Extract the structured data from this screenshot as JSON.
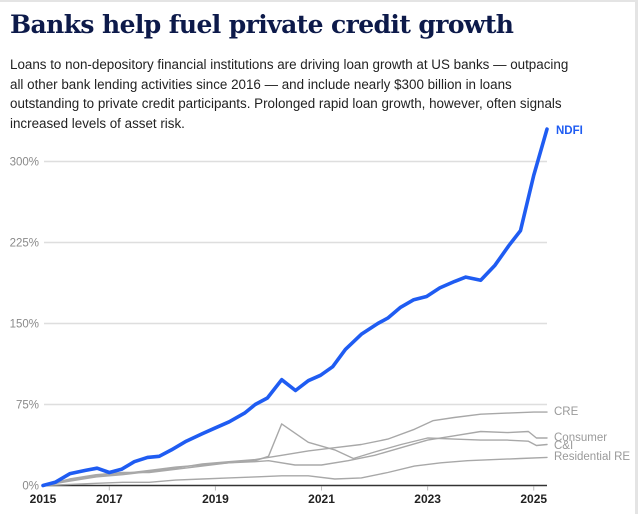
{
  "header": {
    "title": "Banks help fuel private credit growth",
    "subtitle": "Loans to non-depository financial institutions are driving loan growth at US banks — outpacing all other bank lending activities since 2016 — and include nearly $300 billion in loans outstanding to private credit participants. Prolonged rapid loan growth, however, often signals increased levels of asset risk."
  },
  "chart_data": {
    "type": "line",
    "title": "Banks help fuel private credit growth",
    "xlabel": "",
    "ylabel": "",
    "xlim": [
      2015.75,
      2025.25
    ],
    "ylim": [
      0,
      330
    ],
    "grid": true,
    "y_ticks": [
      {
        "value": 0,
        "label": "0%"
      },
      {
        "value": 75,
        "label": "75%"
      },
      {
        "value": 150,
        "label": "150%"
      },
      {
        "value": 225,
        "label": "225%"
      },
      {
        "value": 300,
        "label": "300%"
      }
    ],
    "x_ticks": [
      {
        "value": 2015,
        "label": "2015"
      },
      {
        "value": 2017,
        "label": "2017"
      },
      {
        "value": 2019,
        "label": "2019"
      },
      {
        "value": 2021,
        "label": "2021"
      },
      {
        "value": 2023,
        "label": "2023"
      },
      {
        "value": 2025,
        "label": "2025"
      }
    ],
    "legend": "direct labels at line ends (right)",
    "series": [
      {
        "name": "NDFI",
        "color": "#1f5cf2",
        "primary": true,
        "x": [
          2015.75,
          2015.98,
          2016.26,
          2016.55,
          2016.77,
          2017.0,
          2017.23,
          2017.47,
          2017.72,
          2017.94,
          2018.17,
          2018.45,
          2018.75,
          2018.98,
          2019.26,
          2019.55,
          2019.75,
          2019.98,
          2020.25,
          2020.51,
          2020.75,
          2020.98,
          2021.21,
          2021.45,
          2021.75,
          2022.06,
          2022.25,
          2022.49,
          2022.74,
          2022.98,
          2023.23,
          2023.51,
          2023.72,
          2024.0,
          2024.27,
          2024.53,
          2024.75,
          2025.0,
          2025.25
        ],
        "values": [
          0,
          3,
          11,
          14,
          16,
          12,
          15,
          22,
          26,
          27,
          33,
          41,
          48,
          53,
          59,
          67,
          75,
          81,
          98,
          88,
          97,
          102,
          110,
          126,
          140,
          150,
          155,
          165,
          172,
          175,
          183,
          189,
          193,
          190,
          204,
          222,
          236,
          287,
          330
        ]
      },
      {
        "name": "CRE",
        "color": "#a8a8a8",
        "x": [
          2015.75,
          2016.25,
          2016.75,
          2017.25,
          2017.75,
          2018.25,
          2018.75,
          2019.25,
          2019.75,
          2020.25,
          2020.75,
          2021.25,
          2021.75,
          2022.25,
          2022.75,
          2023.1,
          2023.5,
          2024.0,
          2024.5,
          2025.0,
          2025.25
        ],
        "values": [
          0,
          4,
          8,
          10,
          13,
          16,
          20,
          22,
          24,
          28,
          32,
          35,
          38,
          43,
          52,
          60,
          63,
          66,
          67,
          68,
          68
        ]
      },
      {
        "name": "Consumer",
        "color": "#a8a8a8",
        "x": [
          2015.75,
          2016.25,
          2016.75,
          2017.25,
          2017.75,
          2018.25,
          2018.75,
          2019.25,
          2019.75,
          2020.0,
          2020.5,
          2021.0,
          2021.5,
          2022.0,
          2022.5,
          2023.0,
          2023.5,
          2024.0,
          2024.5,
          2024.9,
          2025.05,
          2025.25
        ],
        "values": [
          0,
          5,
          9,
          11,
          14,
          17,
          19,
          21,
          22,
          23,
          19,
          19,
          23,
          28,
          35,
          42,
          46,
          50,
          49,
          50,
          44,
          44
        ]
      },
      {
        "name": "C&I",
        "color": "#a8a8a8",
        "x": [
          2015.75,
          2016.25,
          2016.75,
          2017.25,
          2017.75,
          2018.25,
          2018.75,
          2019.25,
          2019.75,
          2020.0,
          2020.25,
          2020.75,
          2021.25,
          2021.6,
          2022.0,
          2022.5,
          2023.0,
          2023.5,
          2024.0,
          2024.5,
          2024.9,
          2025.05,
          2025.25
        ],
        "values": [
          0,
          6,
          10,
          12,
          12,
          15,
          18,
          21,
          23,
          27,
          57,
          40,
          33,
          25,
          31,
          38,
          44,
          43,
          42,
          42,
          41,
          37,
          38
        ]
      },
      {
        "name": "Residential RE",
        "color": "#a8a8a8",
        "x": [
          2015.75,
          2016.25,
          2016.75,
          2017.25,
          2017.75,
          2018.25,
          2018.75,
          2019.25,
          2019.75,
          2020.25,
          2020.75,
          2021.25,
          2021.75,
          2022.25,
          2022.75,
          2023.25,
          2023.75,
          2024.25,
          2024.75,
          2025.25
        ],
        "values": [
          0,
          1,
          2,
          3,
          3,
          5,
          6,
          7,
          8,
          9,
          9,
          6,
          7,
          12,
          18,
          21,
          23,
          24,
          25,
          26
        ]
      }
    ]
  }
}
